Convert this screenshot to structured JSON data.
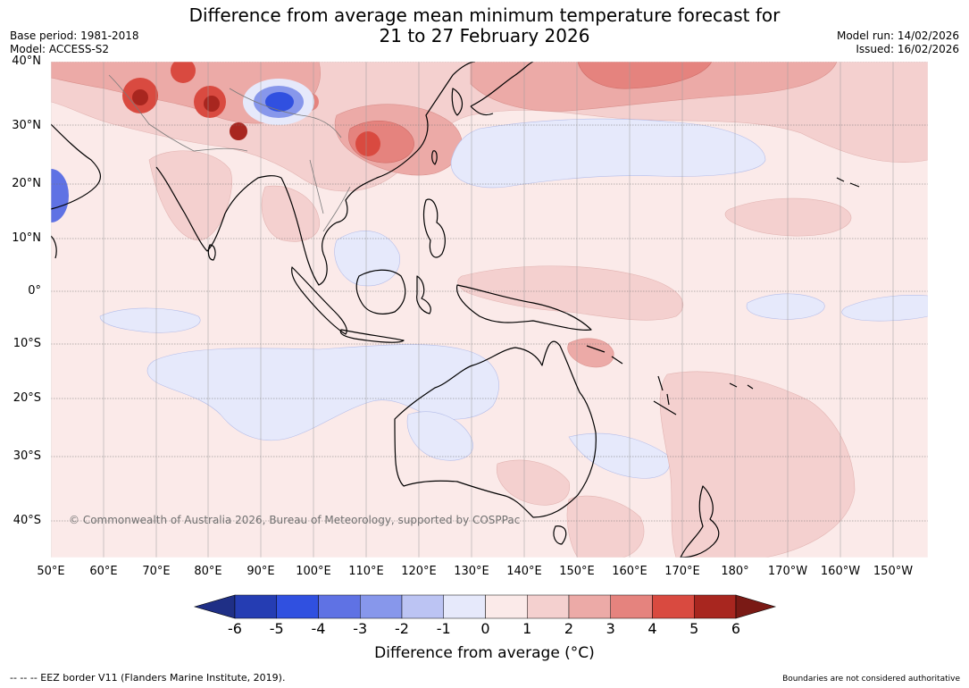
{
  "header": {
    "title_line1": "Difference from average mean minimum temperature forecast for",
    "title_line2": "21 to 27 February 2026",
    "base_period": "Base period: 1981-2018",
    "model": "Model: ACCESS-S2",
    "model_run": "Model run: 14/02/2026",
    "issued": "Issued: 16/02/2026"
  },
  "map": {
    "lat_labels": [
      "40°N",
      "30°N",
      "20°N",
      "10°N",
      "0°",
      "10°S",
      "20°S",
      "30°S",
      "40°S"
    ],
    "lon_labels": [
      "50°E",
      "60°E",
      "70°E",
      "80°E",
      "90°E",
      "100°E",
      "110°E",
      "120°E",
      "130°E",
      "140°E",
      "150°E",
      "160°E",
      "170°E",
      "180°",
      "170°W",
      "160°W",
      "150°W"
    ],
    "copyright": "© Commonwealth of Australia 2026, Bureau of Meteorology, supported by COSPPac"
  },
  "colorbar": {
    "ticks": [
      "-6",
      "-5",
      "-4",
      "-3",
      "-2",
      "-1",
      "0",
      "1",
      "2",
      "3",
      "4",
      "5",
      "6"
    ],
    "colors": [
      "#1f2f86",
      "#253db3",
      "#3050e0",
      "#5f72e4",
      "#8797eb",
      "#bcc4f3",
      "#e6e9fb",
      "#fbeae9",
      "#f4d0cf",
      "#ecaaa7",
      "#e5837e",
      "#d94a40",
      "#a8261f",
      "#7a1a15"
    ],
    "label": "Difference from average (°C)"
  },
  "footer": {
    "eez_note": "--  --  -- EEZ border V11 (Flanders Marine Institute, 2019).",
    "boundaries_note": "Boundaries are not considered authoritative"
  }
}
